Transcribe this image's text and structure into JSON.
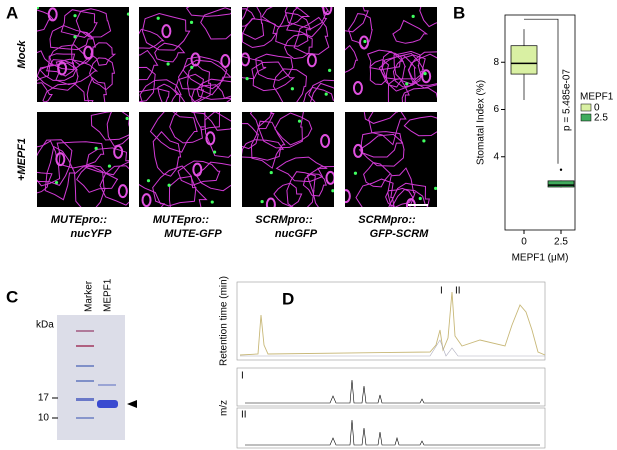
{
  "panel_a": {
    "label": "A",
    "rows": [
      "Mock",
      "+MEPF1"
    ],
    "columns": [
      [
        "MUTEpro::",
        "nucYFP"
      ],
      [
        "MUTEpro::",
        "MUTE-GFP"
      ],
      [
        "SCRMpro::",
        "nucGFP"
      ],
      [
        "SCRMpro::",
        "GFP-SCRM"
      ]
    ]
  },
  "chart_data": {
    "type": "box",
    "label": "B",
    "ylabel": "Stomatal Index  (%)",
    "xlabel": "MEPF1  (μM)",
    "categories": [
      "0",
      "2.5"
    ],
    "colors": [
      "#d9f0a3",
      "#41ab5d"
    ],
    "boxes": [
      {
        "whisker_low": 6.4,
        "q1": 7.5,
        "median": 7.95,
        "q3": 8.7,
        "whisker_high": 9.4
      },
      {
        "whisker_low": 2.7,
        "q1": 2.72,
        "median": 2.8,
        "q3": 2.98,
        "whisker_high": 3.0,
        "outliers": [
          3.45
        ]
      }
    ],
    "ylim": [
      0.9,
      10
    ],
    "yticks": [
      4,
      6,
      8
    ],
    "annotation": "p = 5.485e-07",
    "legend_title": "MEPF1"
  },
  "panel_c": {
    "label": "C",
    "unit": "kDa",
    "lanes": [
      "Marker",
      "MEPF1"
    ],
    "markers": [
      17,
      10
    ]
  },
  "panel_d": {
    "label": "D",
    "ylabel_top": "Retention time (min)",
    "ylabel_bottom": "m/z",
    "peaks": [
      "I",
      "II"
    ]
  }
}
